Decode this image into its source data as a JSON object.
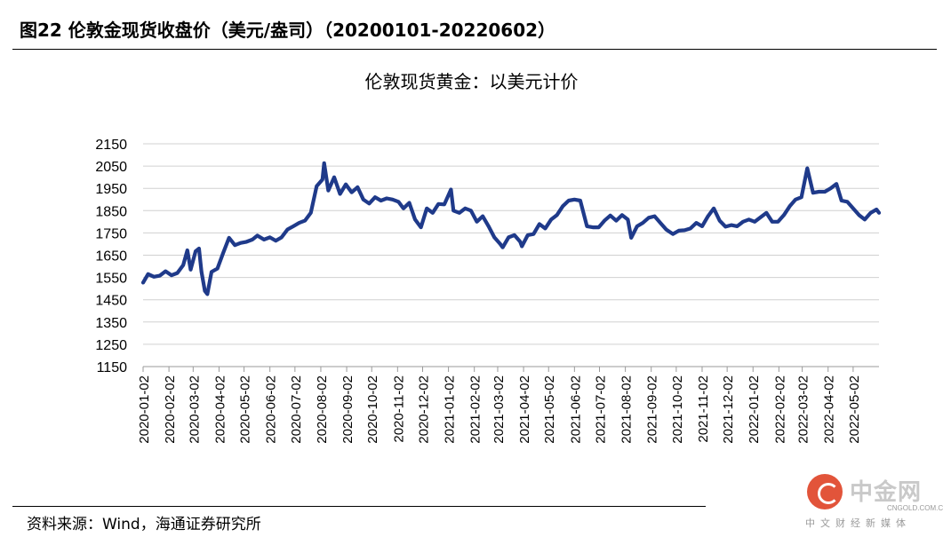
{
  "figure_title": "图22 伦敦金现货收盘价（美元/盎司）（20200101-20220602）",
  "source": "资料来源：Wind，海通证券研究所",
  "watermark": {
    "brand": "中金网",
    "url": "CNGOLD.COM.CN",
    "slogan": "中文财经新媒体"
  },
  "chart_data": {
    "type": "line",
    "title": "伦敦现货黄金：以美元计价",
    "xlabel": "",
    "ylabel": "",
    "ylim": [
      1150,
      2150
    ],
    "yticks": [
      1150,
      1250,
      1350,
      1450,
      1550,
      1650,
      1750,
      1850,
      1950,
      2050,
      2150
    ],
    "xlim": [
      "2020-01-02",
      "2022-06-02"
    ],
    "xticks": [
      "2020-01-02",
      "2020-02-02",
      "2020-03-02",
      "2020-04-02",
      "2020-05-02",
      "2020-06-02",
      "2020-07-02",
      "2020-08-02",
      "2020-09-02",
      "2020-10-02",
      "2020-11-02",
      "2020-12-02",
      "2021-01-02",
      "2021-02-02",
      "2021-03-02",
      "2021-04-02",
      "2021-05-02",
      "2021-06-02",
      "2021-07-02",
      "2021-08-02",
      "2021-09-02",
      "2021-10-02",
      "2021-11-02",
      "2021-12-02",
      "2022-01-02",
      "2022-02-02",
      "2022-03-02",
      "2022-04-02",
      "2022-05-02"
    ],
    "grid": "horizontal",
    "line_color": "#1f3a8a",
    "series": [
      {
        "x": [
          "2020-01-02",
          "2020-01-08",
          "2020-01-15",
          "2020-01-22",
          "2020-01-29",
          "2020-02-05",
          "2020-02-12",
          "2020-02-19",
          "2020-02-24",
          "2020-02-28",
          "2020-03-05",
          "2020-03-09",
          "2020-03-12",
          "2020-03-16",
          "2020-03-19",
          "2020-03-24",
          "2020-03-31",
          "2020-04-07",
          "2020-04-14",
          "2020-04-21",
          "2020-04-28",
          "2020-05-05",
          "2020-05-12",
          "2020-05-18",
          "2020-05-26",
          "2020-06-02",
          "2020-06-09",
          "2020-06-16",
          "2020-06-23",
          "2020-06-30",
          "2020-07-07",
          "2020-07-14",
          "2020-07-21",
          "2020-07-28",
          "2020-08-04",
          "2020-08-06",
          "2020-08-11",
          "2020-08-18",
          "2020-08-25",
          "2020-09-01",
          "2020-09-08",
          "2020-09-15",
          "2020-09-22",
          "2020-09-29",
          "2020-10-06",
          "2020-10-13",
          "2020-10-20",
          "2020-10-27",
          "2020-11-03",
          "2020-11-09",
          "2020-11-16",
          "2020-11-23",
          "2020-11-30",
          "2020-12-07",
          "2020-12-14",
          "2020-12-21",
          "2020-12-28",
          "2021-01-05",
          "2021-01-08",
          "2021-01-15",
          "2021-01-22",
          "2021-01-29",
          "2021-02-05",
          "2021-02-12",
          "2021-02-19",
          "2021-02-26",
          "2021-03-05",
          "2021-03-08",
          "2021-03-15",
          "2021-03-22",
          "2021-03-29",
          "2021-03-31",
          "2021-04-07",
          "2021-04-14",
          "2021-04-21",
          "2021-04-28",
          "2021-05-05",
          "2021-05-12",
          "2021-05-19",
          "2021-05-26",
          "2021-06-02",
          "2021-06-09",
          "2021-06-17",
          "2021-06-24",
          "2021-07-01",
          "2021-07-08",
          "2021-07-15",
          "2021-07-22",
          "2021-07-29",
          "2021-08-05",
          "2021-08-09",
          "2021-08-16",
          "2021-08-23",
          "2021-08-30",
          "2021-09-06",
          "2021-09-13",
          "2021-09-20",
          "2021-09-28",
          "2021-10-05",
          "2021-10-12",
          "2021-10-19",
          "2021-10-26",
          "2021-11-02",
          "2021-11-09",
          "2021-11-16",
          "2021-11-23",
          "2021-11-30",
          "2021-12-07",
          "2021-12-14",
          "2021-12-21",
          "2021-12-28",
          "2022-01-04",
          "2022-01-11",
          "2022-01-18",
          "2022-01-25",
          "2022-02-01",
          "2022-02-08",
          "2022-02-15",
          "2022-02-22",
          "2022-03-01",
          "2022-03-08",
          "2022-03-15",
          "2022-03-22",
          "2022-03-29",
          "2022-04-05",
          "2022-04-12",
          "2022-04-18",
          "2022-04-25",
          "2022-05-02",
          "2022-05-09",
          "2022-05-16",
          "2022-05-23",
          "2022-05-30",
          "2022-06-02"
        ],
        "values": [
          1527,
          1565,
          1553,
          1558,
          1578,
          1560,
          1570,
          1605,
          1672,
          1585,
          1668,
          1680,
          1575,
          1490,
          1475,
          1575,
          1590,
          1660,
          1728,
          1695,
          1705,
          1710,
          1720,
          1738,
          1720,
          1730,
          1715,
          1730,
          1765,
          1780,
          1795,
          1805,
          1840,
          1960,
          1990,
          2063,
          1940,
          2000,
          1925,
          1968,
          1932,
          1955,
          1900,
          1882,
          1910,
          1895,
          1905,
          1900,
          1890,
          1860,
          1885,
          1810,
          1775,
          1860,
          1840,
          1880,
          1878,
          1945,
          1850,
          1840,
          1860,
          1850,
          1800,
          1825,
          1780,
          1730,
          1700,
          1685,
          1730,
          1740,
          1710,
          1690,
          1740,
          1745,
          1790,
          1770,
          1810,
          1830,
          1870,
          1895,
          1900,
          1895,
          1780,
          1775,
          1775,
          1805,
          1828,
          1805,
          1830,
          1810,
          1728,
          1780,
          1795,
          1818,
          1825,
          1795,
          1765,
          1745,
          1760,
          1762,
          1770,
          1795,
          1780,
          1825,
          1860,
          1805,
          1778,
          1785,
          1780,
          1800,
          1810,
          1800,
          1820,
          1840,
          1800,
          1800,
          1830,
          1870,
          1900,
          1910,
          2040,
          1930,
          1935,
          1935,
          1950,
          1970,
          1895,
          1890,
          1860,
          1830,
          1810,
          1840,
          1855,
          1840
        ]
      }
    ]
  }
}
